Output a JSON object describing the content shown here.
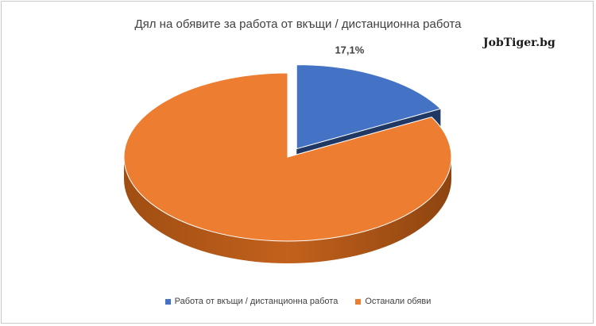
{
  "brand": "JobTiger.bg",
  "chart_data": {
    "type": "pie",
    "title": "Дял на обявите за работа от вкъщи / дистанционна работа",
    "categories": [
      "Работа от вкъщи / дистанционна работа",
      "Останали обяви"
    ],
    "values": [
      17.1,
      82.9
    ],
    "data_labels": [
      "17,1%",
      ""
    ],
    "colors": [
      "#4472c4",
      "#ed7d31"
    ],
    "exploded_slice": 0,
    "legend_position": "bottom",
    "style": "3d"
  }
}
